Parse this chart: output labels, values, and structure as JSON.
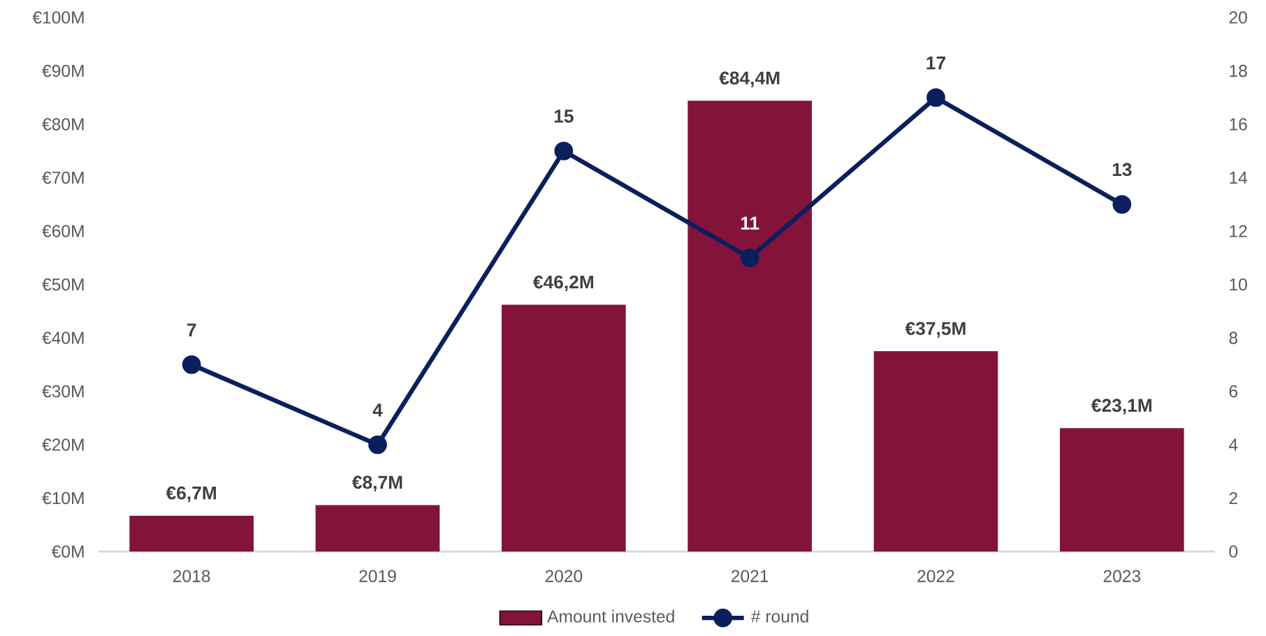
{
  "chart_data": {
    "type": "bar",
    "categories": [
      "2018",
      "2019",
      "2020",
      "2021",
      "2022",
      "2023"
    ],
    "series": [
      {
        "name": "Amount invested",
        "color": "#83133a",
        "values": [
          6.7,
          8.7,
          46.2,
          84.4,
          37.5,
          23.1
        ],
        "value_labels": [
          "€6,7M",
          "€8,7M",
          "€46,2M",
          "€84,4M",
          "€37,5M",
          "€23,1M"
        ]
      },
      {
        "name": "# round",
        "type": "line",
        "axis": "y2",
        "color": "#0b1f5c",
        "marker": "circle",
        "values": [
          7,
          4,
          15,
          11,
          17,
          13
        ],
        "value_labels": [
          "7",
          "4",
          "15",
          "11",
          "17",
          "13"
        ]
      }
    ],
    "ylim": [
      0,
      100
    ],
    "yticks": [
      {
        "value": 0,
        "label": "€0M"
      },
      {
        "value": 10,
        "label": "€10M"
      },
      {
        "value": 20,
        "label": "€20M"
      },
      {
        "value": 30,
        "label": "€30M"
      },
      {
        "value": 40,
        "label": "€40M"
      },
      {
        "value": 50,
        "label": "€50M"
      },
      {
        "value": 60,
        "label": "€60M"
      },
      {
        "value": 70,
        "label": "€70M"
      },
      {
        "value": 80,
        "label": "€80M"
      },
      {
        "value": 90,
        "label": "€90M"
      },
      {
        "value": 100,
        "label": "€100M"
      }
    ],
    "y2lim": [
      0,
      20
    ],
    "y2ticks": [
      0,
      2,
      4,
      6,
      8,
      10,
      12,
      14,
      16,
      18,
      20
    ],
    "legend": "bottom",
    "grid": false
  }
}
